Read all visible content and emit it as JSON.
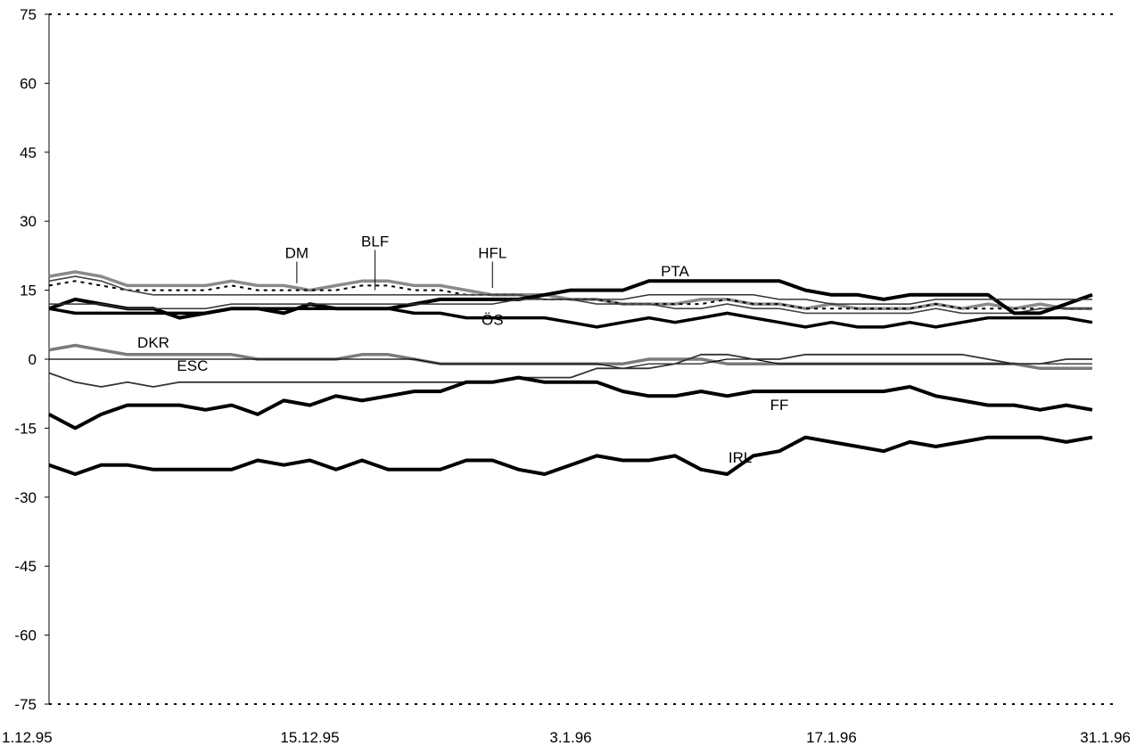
{
  "chart_data": {
    "type": "line",
    "title": "",
    "xlabel": "",
    "ylabel": "",
    "ylim": [
      -75,
      75
    ],
    "xlim": [
      "1.12.95",
      "31.1.96"
    ],
    "y_ticks": [
      75,
      60,
      45,
      30,
      15,
      0,
      -15,
      -30,
      -45,
      -60,
      -75
    ],
    "x_ticks": [
      "1.12.95",
      "15.12.95",
      "3.1.96",
      "17.1.96",
      "31.1.96"
    ],
    "grid": "dotted lines at 75 and -75 only",
    "x": [
      "1.12.95",
      "4.12.95",
      "5.12.95",
      "6.12.95",
      "7.12.95",
      "8.12.95",
      "11.12.95",
      "12.12.95",
      "13.12.95",
      "14.12.95",
      "15.12.95",
      "18.12.95",
      "19.12.95",
      "20.12.95",
      "21.12.95",
      "22.12.95",
      "27.12.95",
      "28.12.95",
      "29.12.95",
      "2.1.96",
      "3.1.96",
      "4.1.96",
      "5.1.96",
      "8.1.96",
      "9.1.96",
      "10.1.96",
      "11.1.96",
      "12.1.96",
      "15.1.96",
      "16.1.96",
      "17.1.96",
      "18.1.96",
      "19.1.96",
      "22.1.96",
      "23.1.96",
      "24.1.96",
      "25.1.96",
      "26.1.96",
      "29.1.96",
      "30.1.96",
      "31.1.96"
    ],
    "series": [
      {
        "name": "DM",
        "values": [
          18,
          19,
          18,
          16,
          16,
          16,
          16,
          17,
          16,
          16,
          15,
          16,
          17,
          17,
          16,
          16,
          15,
          14,
          14,
          14,
          13,
          13,
          12,
          12,
          12,
          13,
          13,
          12,
          12,
          11,
          12,
          11,
          11,
          11,
          12,
          11,
          12,
          11,
          12,
          11,
          11
        ]
      },
      {
        "name": "BLF",
        "values": [
          16,
          17,
          16,
          15,
          15,
          15,
          15,
          16,
          15,
          15,
          15,
          15,
          16,
          16,
          15,
          15,
          14,
          14,
          14,
          13,
          13,
          13,
          12,
          12,
          12,
          12,
          13,
          12,
          12,
          11,
          11,
          11,
          11,
          11,
          12,
          11,
          11,
          11,
          11,
          11,
          11
        ]
      },
      {
        "name": "HFL",
        "values": [
          17,
          18,
          17,
          15,
          14,
          14,
          14,
          14,
          14,
          14,
          14,
          14,
          14,
          14,
          14,
          14,
          14,
          14,
          14,
          13,
          13,
          12,
          12,
          12,
          11,
          11,
          12,
          11,
          11,
          10,
          10,
          10,
          10,
          10,
          11,
          10,
          10,
          10,
          11,
          11,
          11
        ]
      },
      {
        "name": "PTA",
        "values": [
          11,
          13,
          12,
          11,
          11,
          9,
          10,
          11,
          11,
          10,
          12,
          11,
          11,
          11,
          12,
          13,
          13,
          13,
          13,
          14,
          15,
          15,
          15,
          17,
          17,
          17,
          17,
          17,
          17,
          15,
          14,
          14,
          13,
          14,
          14,
          14,
          14,
          10,
          10,
          12,
          14
        ]
      },
      {
        "name": "ÖS",
        "values": [
          11,
          10,
          10,
          10,
          10,
          10,
          10,
          11,
          11,
          11,
          11,
          11,
          11,
          11,
          10,
          10,
          9,
          9,
          9,
          9,
          8,
          7,
          8,
          9,
          8,
          9,
          10,
          9,
          8,
          7,
          8,
          7,
          7,
          8,
          7,
          8,
          9,
          9,
          9,
          9,
          8
        ]
      },
      {
        "name": "",
        "values": [
          12,
          12,
          12,
          11,
          11,
          11,
          11,
          12,
          12,
          12,
          12,
          12,
          12,
          12,
          12,
          12,
          12,
          12,
          13,
          13,
          13,
          13,
          13,
          14,
          14,
          14,
          14,
          14,
          13,
          13,
          12,
          12,
          12,
          12,
          13,
          13,
          13,
          13,
          13,
          13,
          13
        ]
      },
      {
        "name": "DKR",
        "values": [
          2,
          3,
          2,
          1,
          1,
          1,
          1,
          1,
          0,
          0,
          0,
          0,
          1,
          1,
          0,
          -1,
          -1,
          -1,
          -1,
          -1,
          -1,
          -1,
          -1,
          0,
          0,
          0,
          -1,
          -1,
          -1,
          -1,
          -1,
          -1,
          -1,
          -1,
          -1,
          -1,
          -1,
          -1,
          -2,
          -2,
          -2
        ]
      },
      {
        "name": "",
        "values": [
          0,
          0,
          0,
          0,
          0,
          0,
          0,
          0,
          0,
          0,
          0,
          0,
          0,
          0,
          0,
          -1,
          -1,
          -1,
          -1,
          -1,
          -1,
          -1,
          -2,
          -1,
          -1,
          -1,
          0,
          0,
          -1,
          -1,
          -1,
          -1,
          -1,
          -1,
          -1,
          -1,
          -1,
          -1,
          -1,
          -1,
          -1
        ]
      },
      {
        "name": "ESC",
        "values": [
          -3,
          -5,
          -6,
          -5,
          -6,
          -5,
          -5,
          -5,
          -5,
          -5,
          -5,
          -5,
          -5,
          -5,
          -5,
          -5,
          -5,
          -5,
          -4,
          -4,
          -4,
          -2,
          -2,
          -2,
          -1,
          1,
          1,
          0,
          0,
          1,
          1,
          1,
          1,
          1,
          1,
          1,
          0,
          -1,
          -1,
          0,
          0
        ]
      },
      {
        "name": "FF",
        "values": [
          -12,
          -15,
          -12,
          -10,
          -10,
          -10,
          -11,
          -10,
          -12,
          -9,
          -10,
          -8,
          -9,
          -8,
          -7,
          -7,
          -5,
          -5,
          -4,
          -5,
          -5,
          -5,
          -7,
          -8,
          -8,
          -7,
          -8,
          -7,
          -7,
          -7,
          -7,
          -7,
          -7,
          -6,
          -8,
          -9,
          -10,
          -10,
          -11,
          -10,
          -11
        ]
      },
      {
        "name": "IRL",
        "values": [
          -23,
          -25,
          -23,
          -23,
          -24,
          -24,
          -24,
          -24,
          -22,
          -23,
          -22,
          -24,
          -22,
          -24,
          -24,
          -24,
          -22,
          -22,
          -24,
          -25,
          -23,
          -21,
          -22,
          -22,
          -21,
          -24,
          -25,
          -21,
          -20,
          -17,
          -18,
          -19,
          -20,
          -18,
          -19,
          -18,
          -17,
          -17,
          -17,
          -18,
          -17
        ]
      }
    ]
  }
}
